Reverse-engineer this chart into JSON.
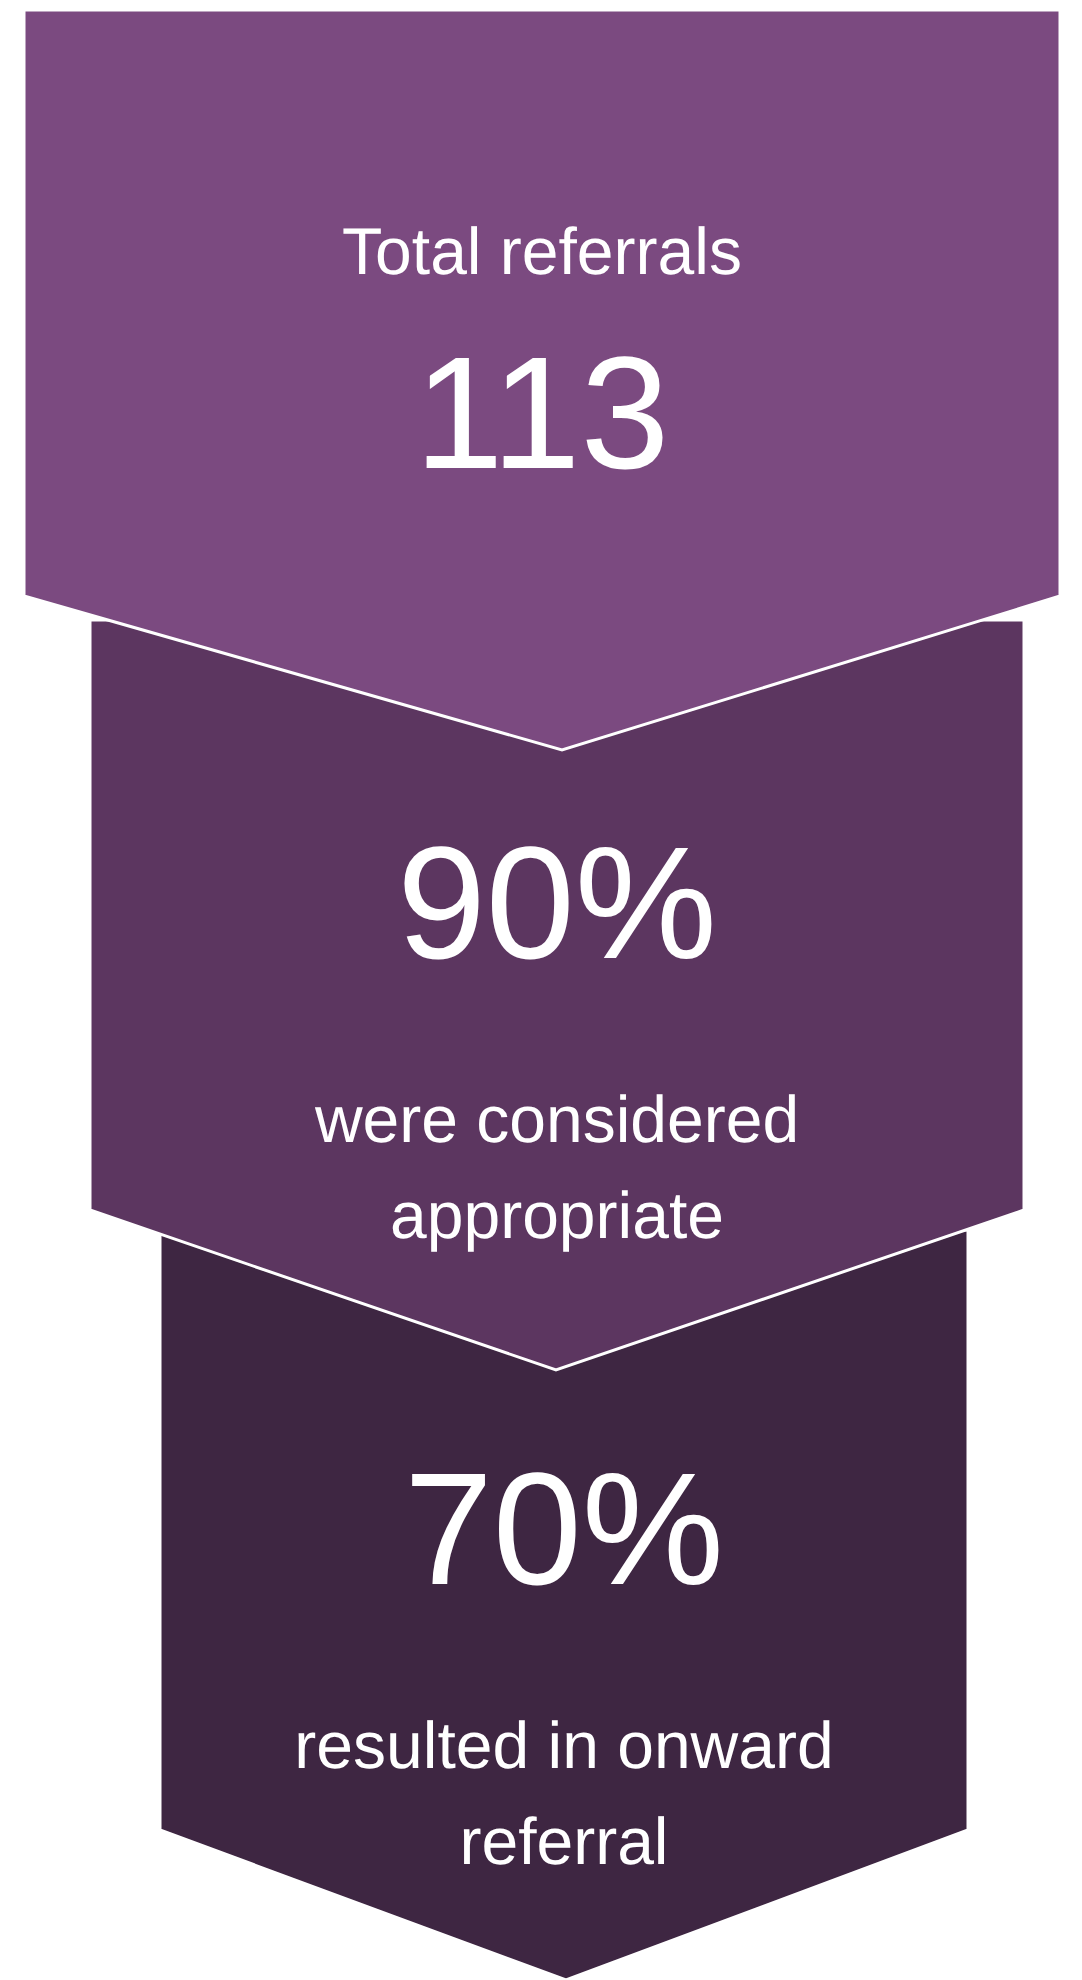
{
  "chart_data": {
    "type": "other",
    "categories": [
      "Total referrals",
      "were considered appropriate",
      "resulted in onward referral"
    ],
    "values": [
      113,
      90,
      70
    ],
    "value_labels": [
      "113",
      "90%",
      "70%"
    ],
    "colors": [
      "#7b4a80",
      "#5c3660",
      "#3e2642"
    ]
  }
}
